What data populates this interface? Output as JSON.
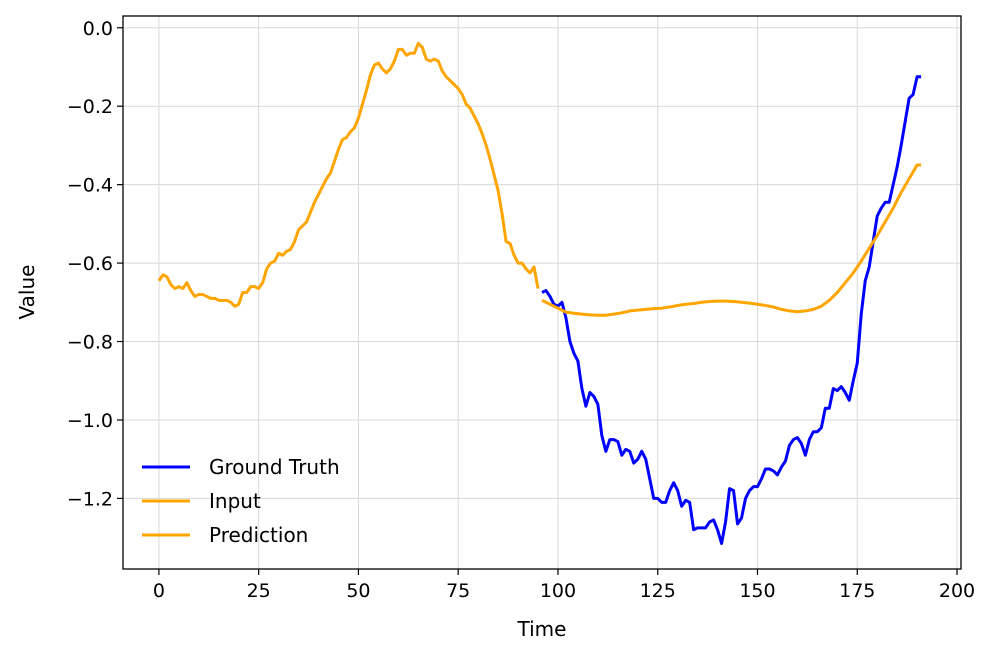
{
  "chart_data": {
    "type": "line",
    "title": "",
    "xlabel": "Time",
    "ylabel": "Value",
    "xlim": [
      -9,
      201
    ],
    "ylim": [
      -1.38,
      0.03
    ],
    "xticks": [
      0,
      25,
      50,
      75,
      100,
      125,
      150,
      175,
      200
    ],
    "yticks": [
      0.0,
      -0.2,
      -0.4,
      -0.6,
      -0.8,
      -1.0,
      -1.2
    ],
    "ytick_labels": [
      "0.0",
      "−0.2",
      "−0.4",
      "−0.6",
      "−0.8",
      "−1.0",
      "−1.2"
    ],
    "grid": true,
    "legend_position": "bottom-left",
    "series": [
      {
        "name": "Ground Truth",
        "color": "#0000ff",
        "x": [
          96,
          97,
          98,
          99,
          100,
          101,
          102,
          103,
          104,
          105,
          106,
          107,
          108,
          109,
          110,
          111,
          112,
          113,
          114,
          115,
          116,
          117,
          118,
          119,
          120,
          121,
          122,
          123,
          124,
          125,
          126,
          127,
          128,
          129,
          130,
          131,
          132,
          133,
          134,
          135,
          136,
          137,
          138,
          139,
          140,
          141,
          142,
          143,
          144,
          145,
          146,
          147,
          148,
          149,
          150,
          151,
          152,
          153,
          154,
          155,
          156,
          157,
          158,
          159,
          160,
          161,
          162,
          163,
          164,
          165,
          166,
          167,
          168,
          169,
          170,
          171,
          172,
          173,
          174,
          175,
          176,
          177,
          178,
          179,
          180,
          181,
          182,
          183,
          184,
          185,
          186,
          187,
          188,
          189,
          190,
          191
        ],
        "y": [
          -0.675,
          -0.67,
          -0.685,
          -0.705,
          -0.71,
          -0.7,
          -0.74,
          -0.8,
          -0.83,
          -0.85,
          -0.92,
          -0.965,
          -0.93,
          -0.94,
          -0.96,
          -1.04,
          -1.08,
          -1.05,
          -1.05,
          -1.055,
          -1.09,
          -1.075,
          -1.08,
          -1.11,
          -1.1,
          -1.08,
          -1.1,
          -1.15,
          -1.2,
          -1.2,
          -1.21,
          -1.21,
          -1.18,
          -1.16,
          -1.18,
          -1.22,
          -1.205,
          -1.21,
          -1.28,
          -1.275,
          -1.275,
          -1.275,
          -1.26,
          -1.255,
          -1.28,
          -1.315,
          -1.26,
          -1.175,
          -1.18,
          -1.265,
          -1.25,
          -1.2,
          -1.18,
          -1.17,
          -1.17,
          -1.15,
          -1.125,
          -1.125,
          -1.13,
          -1.14,
          -1.12,
          -1.105,
          -1.065,
          -1.05,
          -1.045,
          -1.06,
          -1.09,
          -1.05,
          -1.03,
          -1.03,
          -1.02,
          -0.97,
          -0.97,
          -0.92,
          -0.925,
          -0.915,
          -0.93,
          -0.95,
          -0.9,
          -0.855,
          -0.73,
          -0.645,
          -0.61,
          -0.545,
          -0.48,
          -0.46,
          -0.445,
          -0.445,
          -0.4,
          -0.355,
          -0.3,
          -0.24,
          -0.18,
          -0.17,
          -0.125,
          -0.125
        ]
      },
      {
        "name": "Input",
        "color": "#ffa500",
        "x": [
          0,
          1,
          2,
          3,
          4,
          5,
          6,
          7,
          8,
          9,
          10,
          11,
          12,
          13,
          14,
          15,
          16,
          17,
          18,
          19,
          20,
          21,
          22,
          23,
          24,
          25,
          26,
          27,
          28,
          29,
          30,
          31,
          32,
          33,
          34,
          35,
          36,
          37,
          38,
          39,
          40,
          41,
          42,
          43,
          44,
          45,
          46,
          47,
          48,
          49,
          50,
          51,
          52,
          53,
          54,
          55,
          56,
          57,
          58,
          59,
          60,
          61,
          62,
          63,
          64,
          65,
          66,
          67,
          68,
          69,
          70,
          71,
          72,
          73,
          74,
          75,
          76,
          77,
          78,
          79,
          80,
          81,
          82,
          83,
          84,
          85,
          86,
          87,
          88,
          89,
          90,
          91,
          92,
          93,
          94,
          95
        ],
        "y": [
          -0.645,
          -0.63,
          -0.635,
          -0.655,
          -0.665,
          -0.66,
          -0.665,
          -0.65,
          -0.67,
          -0.685,
          -0.68,
          -0.68,
          -0.685,
          -0.69,
          -0.69,
          -0.695,
          -0.695,
          -0.695,
          -0.7,
          -0.71,
          -0.705,
          -0.675,
          -0.675,
          -0.66,
          -0.66,
          -0.665,
          -0.65,
          -0.615,
          -0.6,
          -0.595,
          -0.575,
          -0.58,
          -0.57,
          -0.565,
          -0.545,
          -0.515,
          -0.505,
          -0.495,
          -0.47,
          -0.445,
          -0.425,
          -0.405,
          -0.385,
          -0.37,
          -0.34,
          -0.31,
          -0.285,
          -0.28,
          -0.265,
          -0.255,
          -0.23,
          -0.195,
          -0.16,
          -0.12,
          -0.095,
          -0.09,
          -0.105,
          -0.115,
          -0.105,
          -0.085,
          -0.055,
          -0.055,
          -0.07,
          -0.065,
          -0.065,
          -0.04,
          -0.05,
          -0.08,
          -0.085,
          -0.08,
          -0.085,
          -0.11,
          -0.125,
          -0.135,
          -0.145,
          -0.155,
          -0.17,
          -0.195,
          -0.205,
          -0.225,
          -0.245,
          -0.27,
          -0.3,
          -0.335,
          -0.375,
          -0.415,
          -0.475,
          -0.545,
          -0.55,
          -0.58,
          -0.6,
          -0.6,
          -0.615,
          -0.625,
          -0.61,
          -0.665
        ]
      },
      {
        "name": "Prediction",
        "color": "#ffa500",
        "x": [
          96,
          98,
          100,
          102,
          104,
          106,
          108,
          110,
          112,
          114,
          116,
          118,
          120,
          122,
          124,
          126,
          128,
          130,
          132,
          134,
          136,
          138,
          140,
          142,
          144,
          146,
          148,
          150,
          152,
          154,
          156,
          158,
          160,
          162,
          164,
          166,
          168,
          170,
          172,
          174,
          176,
          178,
          180,
          182,
          184,
          186,
          188,
          190,
          191
        ],
        "y": [
          -0.695,
          -0.705,
          -0.715,
          -0.725,
          -0.728,
          -0.73,
          -0.732,
          -0.733,
          -0.733,
          -0.73,
          -0.727,
          -0.722,
          -0.72,
          -0.718,
          -0.716,
          -0.715,
          -0.712,
          -0.708,
          -0.705,
          -0.703,
          -0.7,
          -0.698,
          -0.697,
          -0.697,
          -0.698,
          -0.7,
          -0.702,
          -0.705,
          -0.708,
          -0.712,
          -0.718,
          -0.722,
          -0.724,
          -0.722,
          -0.718,
          -0.71,
          -0.695,
          -0.675,
          -0.65,
          -0.625,
          -0.595,
          -0.562,
          -0.53,
          -0.495,
          -0.46,
          -0.42,
          -0.385,
          -0.35,
          -0.35
        ]
      }
    ]
  }
}
